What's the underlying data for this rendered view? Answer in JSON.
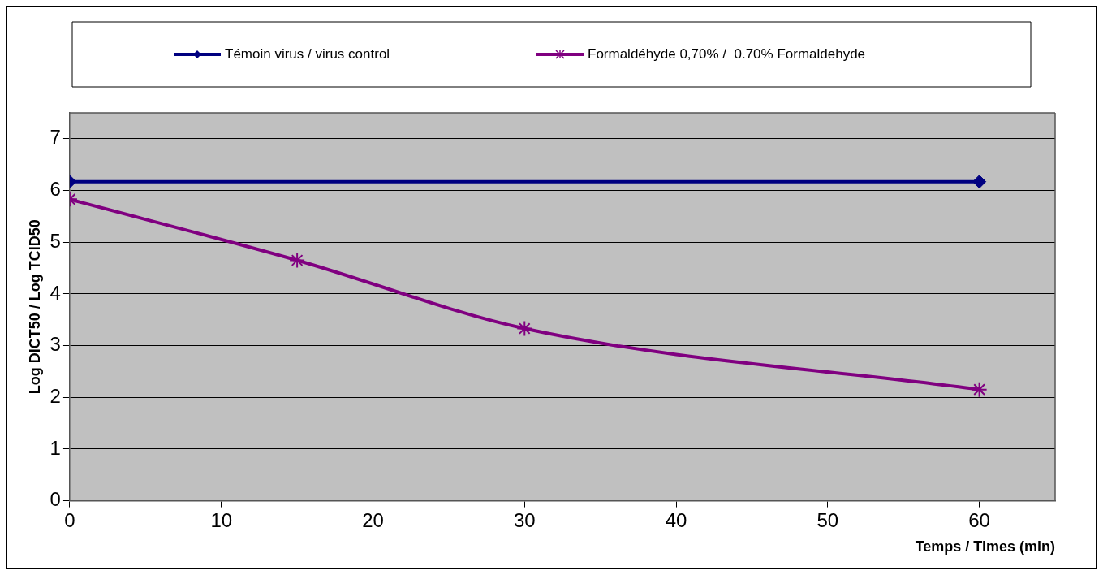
{
  "chart_data": {
    "type": "line",
    "xlabel": "Temps / Times (min)",
    "ylabel": "Log DICT50 / Log TCID50",
    "xlim": [
      0,
      65
    ],
    "xticks": [
      0,
      10,
      20,
      30,
      40,
      50,
      60
    ],
    "ylim": [
      0,
      7.5
    ],
    "yticks": [
      0,
      1,
      2,
      3,
      4,
      5,
      6,
      7
    ],
    "grid": "y",
    "legend": "top",
    "series": [
      {
        "name": "Témoin virus / virus control",
        "color": "#000080",
        "x": [
          0,
          60
        ],
        "values": [
          6.17,
          6.17
        ],
        "marker": "diamond"
      },
      {
        "name": "Formaldéhyde 0,70% /  0.70% Formaldehyde",
        "color": "#800080",
        "x": [
          0,
          15,
          30,
          60
        ],
        "values": [
          5.83,
          4.65,
          3.33,
          2.15
        ],
        "marker": "cross"
      }
    ]
  }
}
